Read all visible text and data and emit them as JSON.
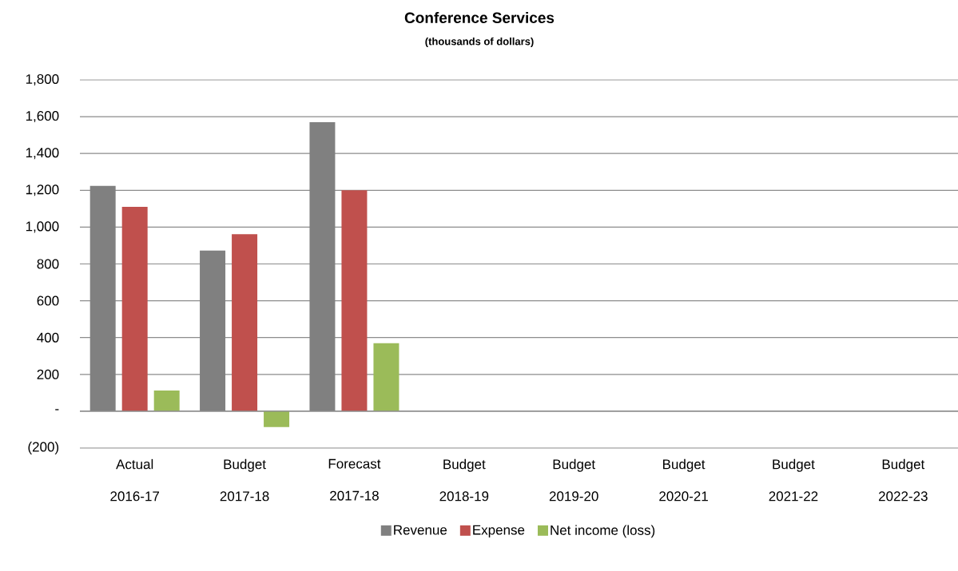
{
  "chart_data": {
    "type": "bar",
    "title": "Conference Services",
    "subtitle": "(thousands of dollars)",
    "categories": [
      "Actual 2016-17",
      "Budget 2017-18",
      "Forecast 2017-18",
      "Budget 2018-19",
      "Budget 2019-20",
      "Budget 2020-21",
      "Budget 2021-22",
      "Budget 2022-23"
    ],
    "series": [
      {
        "name": "Revenue",
        "color": "#808080",
        "values": [
          1224,
          873,
          1570,
          null,
          null,
          null,
          null,
          null
        ]
      },
      {
        "name": "Expense",
        "color": "#c0504d",
        "values": [
          1110,
          962,
          1200,
          null,
          null,
          null,
          null,
          null
        ]
      },
      {
        "name": "Net income (loss)",
        "color": "#9bbb59",
        "values": [
          112,
          -86,
          369,
          null,
          null,
          null,
          null,
          null
        ]
      }
    ],
    "ylim": [
      -200,
      1800
    ],
    "yticks": [
      {
        "value": -200,
        "label": "(200)"
      },
      {
        "value": 0,
        "label": "-"
      },
      {
        "value": 200,
        "label": "200"
      },
      {
        "value": 400,
        "label": "400"
      },
      {
        "value": 600,
        "label": "600"
      },
      {
        "value": 800,
        "label": "800"
      },
      {
        "value": 1000,
        "label": "1,000"
      },
      {
        "value": 1200,
        "label": "1,200"
      },
      {
        "value": 1400,
        "label": "1,400"
      },
      {
        "value": 1600,
        "label": "1,600"
      },
      {
        "value": 1800,
        "label": "1,800"
      }
    ],
    "grid": "y",
    "legend": "bottom"
  }
}
